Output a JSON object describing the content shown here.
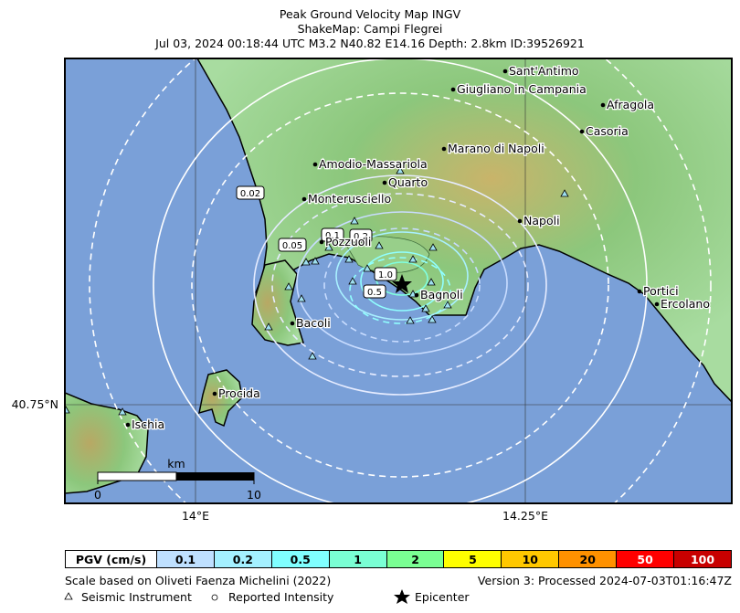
{
  "title": {
    "line1": "Peak Ground Velocity Map INGV",
    "line2": "ShakeMap: Campi Flegrei",
    "line3": "Jul 03, 2024 00:18:44 UTC M3.2 N40.82 E14.16 Depth: 2.8km ID:39526921"
  },
  "axes": {
    "lat_label": "40.75°N",
    "lon_label_1": "14°E",
    "lon_label_2": "14.25°E"
  },
  "places": [
    {
      "id": "sant-antimo",
      "name": "Sant'Antimo"
    },
    {
      "id": "giugliano",
      "name": "Giugliano in Campania"
    },
    {
      "id": "afragola",
      "name": "Afragola"
    },
    {
      "id": "casoria",
      "name": "Casoria"
    },
    {
      "id": "marano",
      "name": "Marano di Napoli"
    },
    {
      "id": "amodio",
      "name": "Amodio-Massariola"
    },
    {
      "id": "quarto",
      "name": "Quarto"
    },
    {
      "id": "monterusciello",
      "name": "Monterusciello"
    },
    {
      "id": "napoli",
      "name": "Napoli"
    },
    {
      "id": "pozzuoli",
      "name": "Pozzuoli"
    },
    {
      "id": "bagnoli",
      "name": "Bagnoli"
    },
    {
      "id": "bacoli",
      "name": "Bacoli"
    },
    {
      "id": "portici",
      "name": "Portici"
    },
    {
      "id": "ercolano",
      "name": "Ercolano"
    },
    {
      "id": "procida",
      "name": "Procida"
    },
    {
      "id": "ischia",
      "name": "Ischia"
    }
  ],
  "contour_labels": [
    "0.02",
    "0.05",
    "0.1",
    "0.2",
    "0.5",
    "1.0"
  ],
  "scale_bar": {
    "unit": "km",
    "start": "0",
    "end": "10"
  },
  "pgv_scale": {
    "header": "PGV (cm/s)",
    "bins": [
      {
        "label": "0.1",
        "color": "#bfe0ff"
      },
      {
        "label": "0.2",
        "color": "#a4f0ff"
      },
      {
        "label": "0.5",
        "color": "#80ffff"
      },
      {
        "label": "1",
        "color": "#7affd4"
      },
      {
        "label": "2",
        "color": "#7aff93"
      },
      {
        "label": "5",
        "color": "#ffff00"
      },
      {
        "label": "10",
        "color": "#ffc800"
      },
      {
        "label": "20",
        "color": "#ff9100"
      },
      {
        "label": "50",
        "color": "#ff0000"
      },
      {
        "label": "100",
        "color": "#c80000"
      }
    ]
  },
  "footer": {
    "scale_note": "Scale based on Oliveti Faenza Michelini (2022)",
    "version": "Version 3: Processed 2024-07-03T01:16:47Z",
    "legend_instrument": "Seismic Instrument",
    "legend_intensity": "Reported Intensity",
    "legend_epicenter": "Epicenter"
  },
  "colors": {
    "sea": "#7aa0d8",
    "land_low": "#a8dca0",
    "land_mid": "#86c678",
    "land_high": "#c8b070",
    "contour": "#ffffff"
  }
}
